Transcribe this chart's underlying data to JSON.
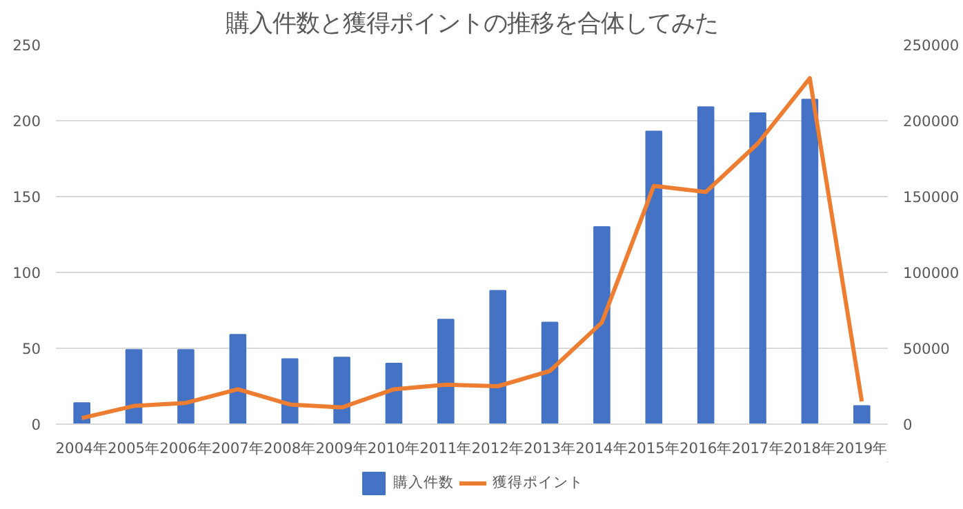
{
  "chart_data": {
    "type": "bar",
    "title": "購入件数と獲得ポイントの推移を合体してみた",
    "categories": [
      "2004年",
      "2005年",
      "2006年",
      "2007年",
      "2008年",
      "2009年",
      "2010年",
      "2011年",
      "2012年",
      "2013年",
      "2014年",
      "2015年",
      "2016年",
      "2017年",
      "2018年",
      "2019年"
    ],
    "series": [
      {
        "name": "購入件数",
        "color": "#4472c4",
        "values": [
          14,
          49,
          49,
          59,
          43,
          44,
          40,
          69,
          88,
          67,
          130,
          193,
          209,
          205,
          214,
          12
        ]
      },
      {
        "name": "獲得ポイント",
        "type": "line",
        "axis": "y2",
        "color": "#ed7d31",
        "values": [
          4000,
          12000,
          14000,
          23000,
          13000,
          11000,
          23000,
          26000,
          25000,
          35000,
          67000,
          157000,
          153000,
          185000,
          228000,
          15000
        ]
      }
    ],
    "ylim": [
      0,
      250
    ],
    "yticks": [
      0,
      50,
      100,
      150,
      200,
      250
    ],
    "y2lim": [
      0,
      250000
    ],
    "y2ticks": [
      0,
      50000,
      100000,
      150000,
      200000,
      250000
    ],
    "grid": "y",
    "legend": "bottom",
    "marker": "none",
    "line_style": "solid"
  }
}
